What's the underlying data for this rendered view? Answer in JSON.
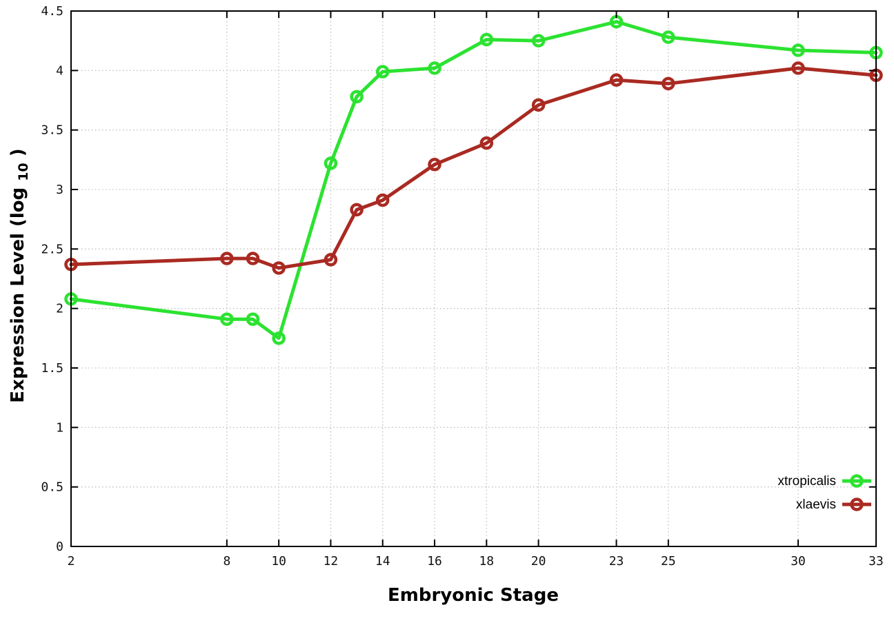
{
  "figure": {
    "background": "#ffffff",
    "axis_color": "#000000",
    "grid_color": "#bfbfbf",
    "tick_label_color": "#111111"
  },
  "chart_data": {
    "type": "line",
    "title": "",
    "xlabel": "Embryonic Stage",
    "ylabel_parts": {
      "base": "Expression Level (log",
      "sub": "10",
      "close": ")"
    },
    "xlim": [
      2,
      33
    ],
    "ylim": [
      0,
      4.5
    ],
    "xticks": [
      2,
      8,
      10,
      12,
      14,
      16,
      18,
      20,
      23,
      25,
      30,
      33
    ],
    "yticks": [
      0,
      0.5,
      1,
      1.5,
      2,
      2.5,
      3,
      3.5,
      4,
      4.5
    ],
    "grid": true,
    "grid_style": "dotted",
    "legend_position": "bottom-right",
    "marker": "open-circle",
    "x": [
      2,
      8,
      9,
      10,
      12,
      13,
      14,
      16,
      18,
      20,
      23,
      25,
      30,
      33
    ],
    "series": [
      {
        "name": "xtropicalis",
        "color": "#2ce231",
        "values": [
          2.08,
          1.91,
          1.91,
          1.75,
          3.22,
          3.78,
          3.99,
          4.02,
          4.26,
          4.25,
          4.41,
          4.28,
          4.17,
          4.15
        ]
      },
      {
        "name": "xlaevis",
        "color": "#a92a22",
        "values": [
          2.37,
          2.42,
          2.42,
          2.34,
          2.41,
          2.83,
          2.91,
          3.21,
          3.39,
          3.71,
          3.92,
          3.89,
          4.02,
          3.96
        ]
      }
    ]
  }
}
